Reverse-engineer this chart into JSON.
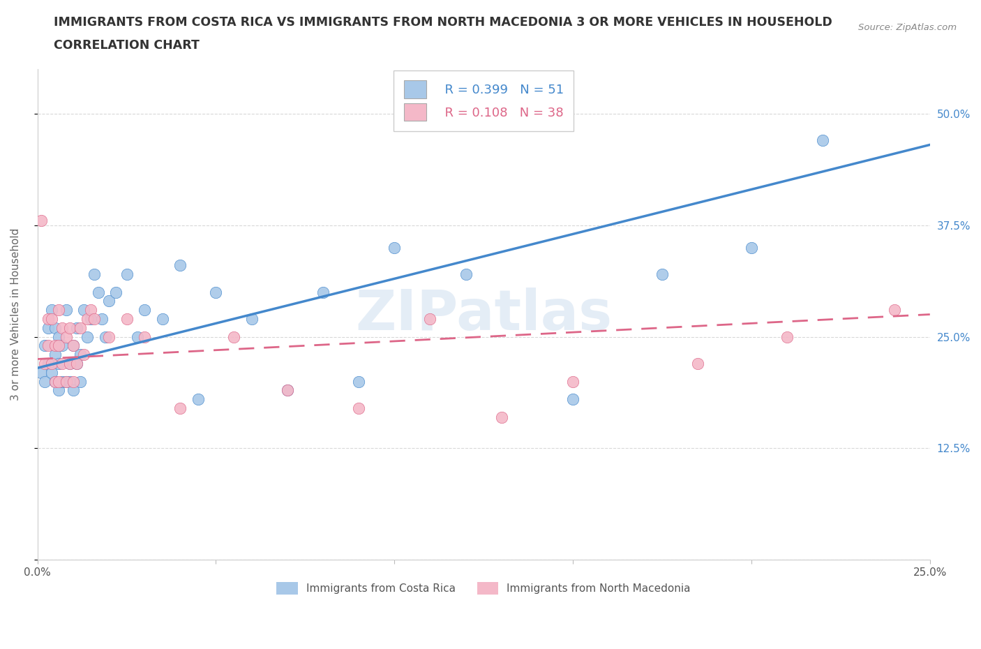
{
  "title_line1": "IMMIGRANTS FROM COSTA RICA VS IMMIGRANTS FROM NORTH MACEDONIA 3 OR MORE VEHICLES IN HOUSEHOLD",
  "title_line2": "CORRELATION CHART",
  "source": "Source: ZipAtlas.com",
  "ylabel": "3 or more Vehicles in Household",
  "xlim": [
    0.0,
    0.25
  ],
  "ylim": [
    0.0,
    0.55
  ],
  "xticks": [
    0.0,
    0.05,
    0.1,
    0.15,
    0.2,
    0.25
  ],
  "yticks": [
    0.0,
    0.125,
    0.25,
    0.375,
    0.5
  ],
  "yticklabels": [
    "",
    "12.5%",
    "25.0%",
    "37.5%",
    "50.0%"
  ],
  "blue_color": "#a8c8e8",
  "pink_color": "#f4b8c8",
  "blue_line_color": "#4488cc",
  "pink_line_color": "#dd6688",
  "legend_R1": "R = 0.399",
  "legend_N1": "N = 51",
  "legend_R2": "R = 0.108",
  "legend_N2": "N = 38",
  "series1_label": "Immigrants from Costa Rica",
  "series2_label": "Immigrants from North Macedonia",
  "costa_rica_x": [
    0.001,
    0.002,
    0.002,
    0.003,
    0.003,
    0.004,
    0.004,
    0.005,
    0.005,
    0.005,
    0.006,
    0.006,
    0.006,
    0.007,
    0.007,
    0.008,
    0.008,
    0.009,
    0.009,
    0.01,
    0.01,
    0.011,
    0.011,
    0.012,
    0.012,
    0.013,
    0.014,
    0.015,
    0.016,
    0.017,
    0.018,
    0.019,
    0.02,
    0.022,
    0.025,
    0.028,
    0.03,
    0.035,
    0.04,
    0.045,
    0.05,
    0.06,
    0.07,
    0.08,
    0.09,
    0.1,
    0.12,
    0.15,
    0.175,
    0.2,
    0.22
  ],
  "costa_rica_y": [
    0.21,
    0.2,
    0.24,
    0.22,
    0.26,
    0.21,
    0.28,
    0.2,
    0.23,
    0.26,
    0.19,
    0.22,
    0.25,
    0.2,
    0.24,
    0.2,
    0.28,
    0.22,
    0.2,
    0.19,
    0.24,
    0.22,
    0.26,
    0.2,
    0.23,
    0.28,
    0.25,
    0.27,
    0.32,
    0.3,
    0.27,
    0.25,
    0.29,
    0.3,
    0.32,
    0.25,
    0.28,
    0.27,
    0.33,
    0.18,
    0.3,
    0.27,
    0.19,
    0.3,
    0.2,
    0.35,
    0.32,
    0.18,
    0.32,
    0.35,
    0.47
  ],
  "north_mac_x": [
    0.001,
    0.002,
    0.003,
    0.003,
    0.004,
    0.004,
    0.005,
    0.005,
    0.006,
    0.006,
    0.006,
    0.007,
    0.007,
    0.008,
    0.008,
    0.009,
    0.009,
    0.01,
    0.01,
    0.011,
    0.012,
    0.013,
    0.014,
    0.015,
    0.016,
    0.02,
    0.025,
    0.03,
    0.04,
    0.055,
    0.07,
    0.09,
    0.11,
    0.13,
    0.15,
    0.185,
    0.21,
    0.24
  ],
  "north_mac_y": [
    0.38,
    0.22,
    0.24,
    0.27,
    0.22,
    0.27,
    0.2,
    0.24,
    0.2,
    0.24,
    0.28,
    0.22,
    0.26,
    0.2,
    0.25,
    0.22,
    0.26,
    0.2,
    0.24,
    0.22,
    0.26,
    0.23,
    0.27,
    0.28,
    0.27,
    0.25,
    0.27,
    0.25,
    0.17,
    0.25,
    0.19,
    0.17,
    0.27,
    0.16,
    0.2,
    0.22,
    0.25,
    0.28
  ],
  "grid_color": "#d8d8d8",
  "bg_color": "#ffffff",
  "title_color": "#333333",
  "tick_label_color": "#555555",
  "right_tick_color": "#4488cc"
}
